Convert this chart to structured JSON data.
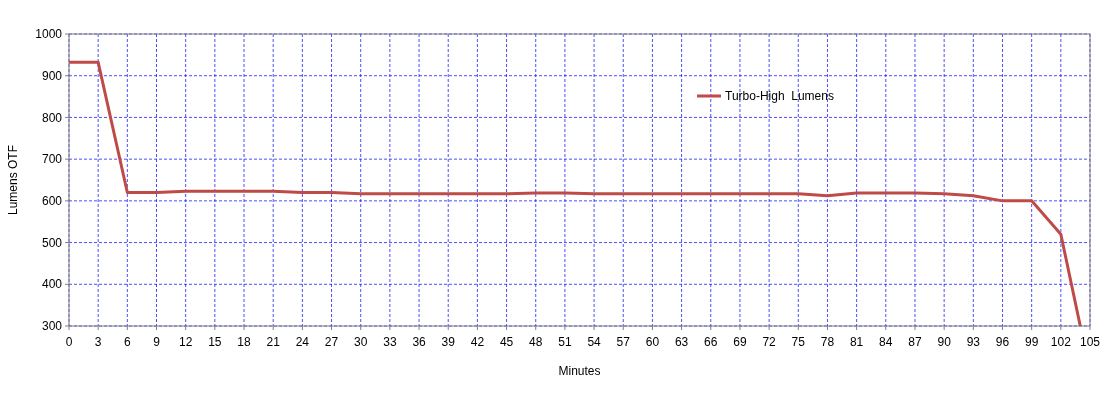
{
  "chart_data": {
    "type": "line",
    "xlabel": "Minutes",
    "ylabel": "Lumens OTF",
    "xlim": [
      0,
      105
    ],
    "xticks": [
      0,
      3,
      6,
      9,
      12,
      15,
      18,
      21,
      24,
      27,
      30,
      33,
      36,
      39,
      42,
      45,
      48,
      51,
      54,
      57,
      60,
      63,
      66,
      69,
      72,
      75,
      78,
      81,
      84,
      87,
      90,
      93,
      96,
      99,
      102,
      105
    ],
    "ylim": [
      300,
      1000
    ],
    "yticks": [
      300,
      400,
      500,
      600,
      700,
      800,
      900,
      1000
    ],
    "grid": true,
    "legend": "top right",
    "marker": "none",
    "line_style": "solid",
    "series": [
      {
        "name": "Turbo-High  Lumens",
        "color": "#be4b48",
        "x": [
          0,
          3,
          6,
          9,
          12,
          15,
          18,
          21,
          24,
          27,
          30,
          33,
          36,
          39,
          42,
          45,
          48,
          51,
          54,
          57,
          60,
          63,
          66,
          69,
          72,
          75,
          78,
          81,
          84,
          87,
          90,
          93,
          96,
          99,
          102,
          104
        ],
        "values": [
          932,
          932,
          620,
          620,
          623,
          623,
          623,
          623,
          620,
          620,
          617,
          617,
          617,
          617,
          617,
          617,
          619,
          619,
          617,
          617,
          617,
          617,
          617,
          617,
          617,
          617,
          612,
          619,
          619,
          619,
          617,
          612,
          600,
          600,
          520,
          300
        ]
      }
    ]
  }
}
